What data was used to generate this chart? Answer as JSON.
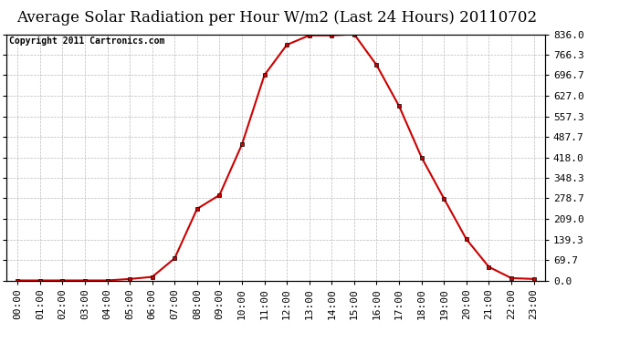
{
  "title": "Average Solar Radiation per Hour W/m2 (Last 24 Hours) 20110702",
  "copyright": "Copyright 2011 Cartronics.com",
  "hours": [
    "00:00",
    "01:00",
    "02:00",
    "03:00",
    "04:00",
    "05:00",
    "06:00",
    "07:00",
    "08:00",
    "09:00",
    "10:00",
    "11:00",
    "12:00",
    "13:00",
    "14:00",
    "15:00",
    "16:00",
    "17:00",
    "18:00",
    "19:00",
    "20:00",
    "21:00",
    "22:00",
    "23:00"
  ],
  "values": [
    0,
    0,
    0,
    0,
    0,
    5,
    12,
    75,
    243,
    290,
    462,
    697,
    800,
    832,
    832,
    836,
    731,
    592,
    418,
    278,
    140,
    46,
    8,
    5
  ],
  "line_color": "#cc0000",
  "marker_color": "#cc0000",
  "bg_color": "#ffffff",
  "grid_color": "#bbbbbb",
  "ytick_values": [
    0.0,
    69.7,
    139.3,
    209.0,
    278.7,
    348.3,
    418.0,
    487.7,
    557.3,
    627.0,
    696.7,
    766.3,
    836.0
  ],
  "ytick_labels": [
    "0.0",
    "69.7",
    "139.3",
    "209.0",
    "278.7",
    "348.3",
    "418.0",
    "487.7",
    "557.3",
    "627.0",
    "696.7",
    "766.3",
    "836.0"
  ],
  "ymin": 0.0,
  "ymax": 836.0,
  "title_fontsize": 12,
  "copyright_fontsize": 7,
  "tick_fontsize": 8,
  "border_color": "#000000"
}
